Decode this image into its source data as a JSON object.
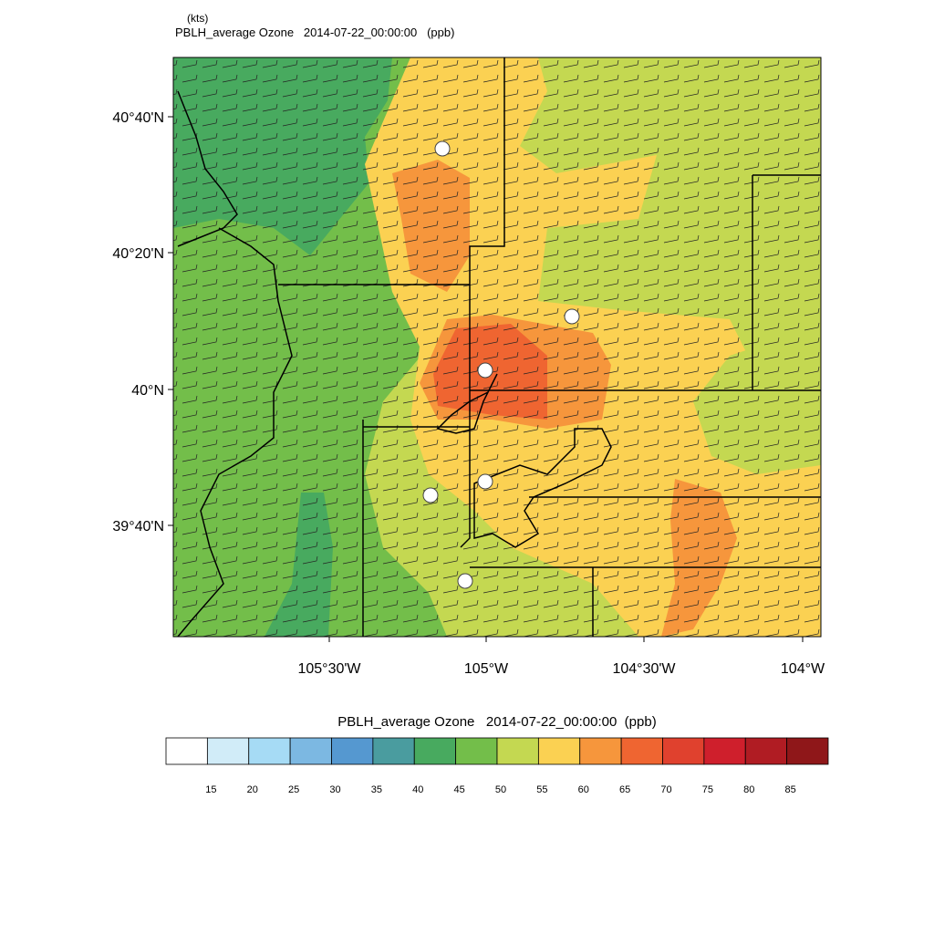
{
  "header": {
    "units": "(kts)",
    "title": "PBLH_average Ozone   2014-07-22_00:00:00   (ppb)"
  },
  "map": {
    "lat_labels": [
      "40°40'N",
      "40°20'N",
      "40°N",
      "39°40'N"
    ],
    "lon_labels": [
      "105°30'W",
      "105°W",
      "104°30'W",
      "104°W"
    ]
  },
  "colorbar": {
    "title": "PBLH_average Ozone   2014-07-22_00:00:00  (ppb)",
    "labels": [
      15,
      20,
      25,
      30,
      35,
      40,
      45,
      50,
      55,
      60,
      65,
      70,
      75,
      80,
      85
    ],
    "colors": [
      "#ffffff",
      "#d1ecf8",
      "#a6dbf5",
      "#7cb8e2",
      "#5598d0",
      "#4a9c9f",
      "#48aa5f",
      "#73be4a",
      "#c4d851",
      "#fbd152",
      "#f6963c",
      "#ef6531",
      "#e0412e",
      "#cf1f2c",
      "#b01c23",
      "#8f1719"
    ]
  }
}
